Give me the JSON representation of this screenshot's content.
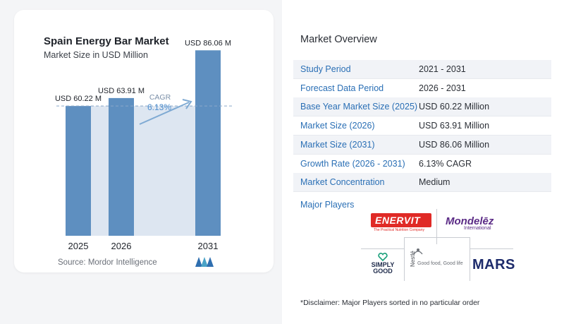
{
  "chart_data": {
    "type": "bar",
    "title": "Spain Energy Bar Market",
    "subtitle": "Market Size in USD Million",
    "categories": [
      "2025",
      "2026",
      "2031"
    ],
    "values": [
      60.22,
      63.91,
      86.06
    ],
    "value_labels": [
      "USD 60.22 M",
      "USD 63.91 M",
      "USD 86.06 M"
    ],
    "cagr_label": "CAGR",
    "cagr_value": "6.13%",
    "ylim": [
      0,
      95
    ],
    "grid": false,
    "colors": {
      "bar": "#5e8fc0",
      "band": "#dde6f1",
      "arrow": "#7faad3",
      "dash": "#8aa9c9"
    }
  },
  "source": "Source:  Mordor Intelligence",
  "overview": {
    "title": "Market Overview",
    "rows": [
      {
        "label": "Study Period",
        "value": "2021 - 2031"
      },
      {
        "label": "Forecast Data Period",
        "value": "2026 - 2031"
      },
      {
        "label": "Base Year Market Size (2025)",
        "value": "USD 60.22 Million"
      },
      {
        "label": "Market Size (2026)",
        "value": "USD 63.91 Million"
      },
      {
        "label": "Market Size (2031)",
        "value": "USD 86.06 Million"
      },
      {
        "label": "Growth Rate (2026 - 2031)",
        "value": "6.13% CAGR"
      },
      {
        "label": "Market Concentration",
        "value": "Medium"
      }
    ],
    "players_label": "Major Players",
    "players": {
      "enervit": "ENERVIT",
      "enervit_tagline": "The Practical Nutrition Company",
      "mondelez": "Mondelēz",
      "mondelez_sub": "International",
      "simplygood": "SIMPLY GOOD",
      "nestle": "Nestlé",
      "nestle_tagline": "Good food, Good life",
      "mars": "MARS"
    },
    "disclaimer": "*Disclaimer: Major Players sorted in no particular order"
  }
}
